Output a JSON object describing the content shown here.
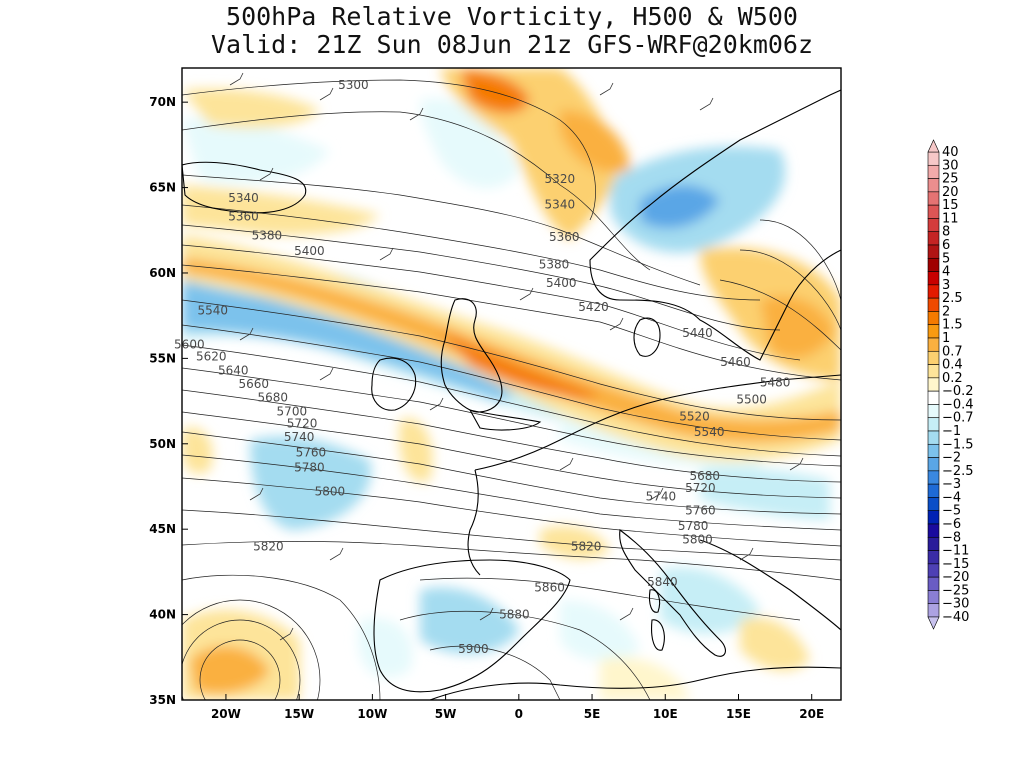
{
  "title": {
    "line1": "500hPa Relative Vorticity, H500 & W500",
    "line2": "Valid: 21Z Sun 08Jun 21z GFS-WRF@20km06z"
  },
  "map": {
    "lat_range": [
      35,
      72
    ],
    "lon_range": [
      -23,
      22
    ],
    "lat_ticks": [
      {
        "value": 35,
        "label": "35N"
      },
      {
        "value": 40,
        "label": "40N"
      },
      {
        "value": 45,
        "label": "45N"
      },
      {
        "value": 50,
        "label": "50N"
      },
      {
        "value": 55,
        "label": "55N"
      },
      {
        "value": 60,
        "label": "60N"
      },
      {
        "value": 65,
        "label": "65N"
      },
      {
        "value": 70,
        "label": "70N"
      }
    ],
    "lon_ticks": [
      {
        "value": -20,
        "label": "20W"
      },
      {
        "value": -15,
        "label": "15W"
      },
      {
        "value": -10,
        "label": "10W"
      },
      {
        "value": -5,
        "label": "5W"
      },
      {
        "value": 0,
        "label": "0"
      },
      {
        "value": 5,
        "label": "5E"
      },
      {
        "value": 10,
        "label": "10E"
      },
      {
        "value": 15,
        "label": "15E"
      },
      {
        "value": 20,
        "label": "20E"
      }
    ],
    "contour_labels": [
      {
        "label": "5300",
        "lon": -11.3,
        "lat": 71.0
      },
      {
        "label": "5320",
        "lon": 2.8,
        "lat": 65.5
      },
      {
        "label": "5340",
        "lon": 2.8,
        "lat": 64.0
      },
      {
        "label": "5340",
        "lon": -18.8,
        "lat": 64.4
      },
      {
        "label": "5360",
        "lon": -18.8,
        "lat": 63.3
      },
      {
        "label": "5360",
        "lon": 3.1,
        "lat": 62.1
      },
      {
        "label": "5380",
        "lon": -17.2,
        "lat": 62.2
      },
      {
        "label": "5380",
        "lon": 2.4,
        "lat": 60.5
      },
      {
        "label": "5400",
        "lon": -14.3,
        "lat": 61.3
      },
      {
        "label": "5400",
        "lon": 2.9,
        "lat": 59.4
      },
      {
        "label": "5420",
        "lon": 5.1,
        "lat": 58.0
      },
      {
        "label": "5440",
        "lon": 12.2,
        "lat": 56.5
      },
      {
        "label": "5460",
        "lon": 14.8,
        "lat": 54.8
      },
      {
        "label": "5480",
        "lon": 17.5,
        "lat": 53.6
      },
      {
        "label": "5500",
        "lon": 15.9,
        "lat": 52.6
      },
      {
        "label": "5520",
        "lon": 12.0,
        "lat": 51.6
      },
      {
        "label": "5540",
        "lon": 13.0,
        "lat": 50.7
      },
      {
        "label": "5540",
        "lon": -20.9,
        "lat": 57.8
      },
      {
        "label": "5600",
        "lon": -22.5,
        "lat": 55.8
      },
      {
        "label": "5620",
        "lon": -21.0,
        "lat": 55.1
      },
      {
        "label": "5640",
        "lon": -19.5,
        "lat": 54.3
      },
      {
        "label": "5660",
        "lon": -18.1,
        "lat": 53.5
      },
      {
        "label": "5680",
        "lon": -16.8,
        "lat": 52.7
      },
      {
        "label": "5700",
        "lon": -15.5,
        "lat": 51.9
      },
      {
        "label": "5720",
        "lon": -14.8,
        "lat": 51.2
      },
      {
        "label": "5740",
        "lon": -15.0,
        "lat": 50.4
      },
      {
        "label": "5760",
        "lon": -14.2,
        "lat": 49.5
      },
      {
        "label": "5780",
        "lon": -14.3,
        "lat": 48.6
      },
      {
        "label": "5800",
        "lon": -12.9,
        "lat": 47.2
      },
      {
        "label": "5820",
        "lon": -17.1,
        "lat": 44.0
      },
      {
        "label": "5820",
        "lon": 4.6,
        "lat": 44.0
      },
      {
        "label": "5680",
        "lon": 12.7,
        "lat": 48.1
      },
      {
        "label": "5720",
        "lon": 12.4,
        "lat": 47.4
      },
      {
        "label": "5740",
        "lon": 9.7,
        "lat": 46.9
      },
      {
        "label": "5760",
        "lon": 12.4,
        "lat": 46.1
      },
      {
        "label": "5780",
        "lon": 11.9,
        "lat": 45.2
      },
      {
        "label": "5800",
        "lon": 12.2,
        "lat": 44.4
      },
      {
        "label": "5840",
        "lon": 9.8,
        "lat": 41.9
      },
      {
        "label": "5860",
        "lon": 2.1,
        "lat": 41.6
      },
      {
        "label": "5880",
        "lon": -0.3,
        "lat": 40.0
      },
      {
        "label": "5900",
        "lon": -3.1,
        "lat": 38.0
      }
    ]
  },
  "colorbar": {
    "unit": "",
    "levels": [
      {
        "label": "40",
        "color": "#f6c8c8"
      },
      {
        "label": "30",
        "color": "#f2aaaa"
      },
      {
        "label": "25",
        "color": "#ec8e8e"
      },
      {
        "label": "20",
        "color": "#e57373"
      },
      {
        "label": "15",
        "color": "#dd5555"
      },
      {
        "label": "11",
        "color": "#d43c3c"
      },
      {
        "label": "8",
        "color": "#c42424"
      },
      {
        "label": "6",
        "color": "#b01414"
      },
      {
        "label": "5",
        "color": "#a00000"
      },
      {
        "label": "4",
        "color": "#c80000"
      },
      {
        "label": "3",
        "color": "#e31a00"
      },
      {
        "label": "2.5",
        "color": "#f04a00"
      },
      {
        "label": "2",
        "color": "#f57a00"
      },
      {
        "label": "1.5",
        "color": "#f89a10"
      },
      {
        "label": "1",
        "color": "#fab040"
      },
      {
        "label": "0.7",
        "color": "#fcd070"
      },
      {
        "label": "0.4",
        "color": "#fde49a"
      },
      {
        "label": "0.2",
        "color": "#fff6cc"
      },
      {
        "label": "−0.2",
        "color": "#ffffff"
      },
      {
        "label": "−0.4",
        "color": "#e6fafc"
      },
      {
        "label": "−0.7",
        "color": "#c6eef6"
      },
      {
        "label": "−1",
        "color": "#a4dcf0"
      },
      {
        "label": "−1.5",
        "color": "#7cc2ec"
      },
      {
        "label": "−2",
        "color": "#5aa6e6"
      },
      {
        "label": "−2.5",
        "color": "#3a88e0"
      },
      {
        "label": "−3",
        "color": "#1e6ad6"
      },
      {
        "label": "−4",
        "color": "#0a4ec8"
      },
      {
        "label": "−5",
        "color": "#0022b4"
      },
      {
        "label": "−6",
        "color": "#1a0a9e"
      },
      {
        "label": "−8",
        "color": "#2a1c9a"
      },
      {
        "label": "−11",
        "color": "#3a2ca6"
      },
      {
        "label": "−15",
        "color": "#4e40b4"
      },
      {
        "label": "−20",
        "color": "#6a5cc4"
      },
      {
        "label": "−25",
        "color": "#8a7ed4"
      },
      {
        "label": "−30",
        "color": "#aca2e2"
      },
      {
        "label": "−40",
        "color": "#c8c2ee"
      }
    ]
  }
}
